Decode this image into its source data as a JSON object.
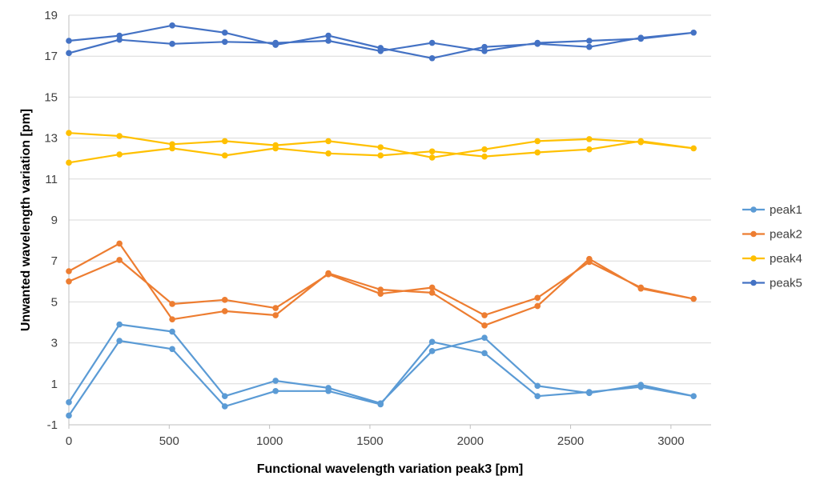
{
  "chart_data": {
    "type": "line",
    "title": "",
    "xlabel": "Functional  wavelength variation peak3 [pm]",
    "ylabel": "Unwanted wavelength variation [pm]",
    "xlim": [
      0,
      3200
    ],
    "ylim": [
      -1,
      19
    ],
    "x_ticks": [
      "0",
      "500",
      "1000",
      "1500",
      "2000",
      "2500",
      "3000"
    ],
    "y_ticks": [
      "-1",
      "1",
      "3",
      "5",
      "7",
      "9",
      "11",
      "13",
      "15",
      "17",
      "19"
    ],
    "grid": "horizontal",
    "legend_position": "right",
    "series": [
      {
        "name": "peak1",
        "color": "#5B9BD5",
        "x": [
          0,
          252,
          515,
          777,
          1030,
          1293,
          1553,
          1810,
          2071,
          2335,
          2593,
          2850,
          3113,
          2850,
          2593,
          2335,
          2071,
          1810,
          1553,
          1293,
          1030,
          777,
          515,
          252,
          0
        ],
        "y": [
          0.1,
          3.9,
          3.55,
          0.4,
          1.15,
          0.8,
          0.05,
          2.6,
          3.25,
          0.9,
          0.55,
          0.95,
          0.4,
          0.85,
          0.6,
          0.4,
          2.5,
          3.05,
          0.0,
          0.65,
          0.65,
          -0.1,
          2.7,
          3.1,
          -0.55
        ]
      },
      {
        "name": "peak2",
        "color": "#ED7D31",
        "x": [
          0,
          252,
          515,
          777,
          1030,
          1293,
          1553,
          1810,
          2071,
          2335,
          2593,
          2850,
          3113,
          2850,
          2593,
          2335,
          2071,
          1810,
          1553,
          1293,
          1030,
          777,
          515,
          252,
          0
        ],
        "y": [
          6.5,
          7.85,
          4.15,
          4.55,
          4.35,
          6.4,
          5.6,
          5.45,
          3.85,
          4.8,
          7.1,
          5.65,
          5.15,
          5.7,
          6.95,
          5.2,
          4.35,
          5.7,
          5.4,
          6.35,
          4.7,
          5.1,
          4.9,
          7.05,
          6.0
        ]
      },
      {
        "name": "peak4",
        "color": "#FFC000",
        "x": [
          0,
          252,
          515,
          777,
          1030,
          1293,
          1553,
          1810,
          2071,
          2335,
          2593,
          2850,
          3113,
          2850,
          2593,
          2335,
          2071,
          1810,
          1553,
          1293,
          1030,
          777,
          515,
          252,
          0
        ],
        "y": [
          11.8,
          12.2,
          12.5,
          12.15,
          12.5,
          12.25,
          12.15,
          12.35,
          12.1,
          12.3,
          12.45,
          12.85,
          12.5,
          12.8,
          12.95,
          12.85,
          12.45,
          12.05,
          12.55,
          12.85,
          12.65,
          12.85,
          12.7,
          13.1,
          13.25
        ]
      },
      {
        "name": "peak5",
        "color": "#4472C4",
        "x": [
          0,
          252,
          515,
          777,
          1030,
          1293,
          1553,
          1810,
          2071,
          2335,
          2593,
          2850,
          3113,
          2850,
          2593,
          2335,
          2071,
          1810,
          1553,
          1293,
          1030,
          777,
          515,
          252,
          0
        ],
        "y": [
          17.15,
          17.8,
          17.6,
          17.7,
          17.65,
          17.75,
          17.25,
          17.65,
          17.25,
          17.65,
          17.75,
          17.85,
          18.15,
          17.9,
          17.45,
          17.6,
          17.45,
          16.9,
          17.4,
          18.0,
          17.55,
          18.15,
          18.5,
          18.0,
          17.75
        ]
      }
    ]
  }
}
